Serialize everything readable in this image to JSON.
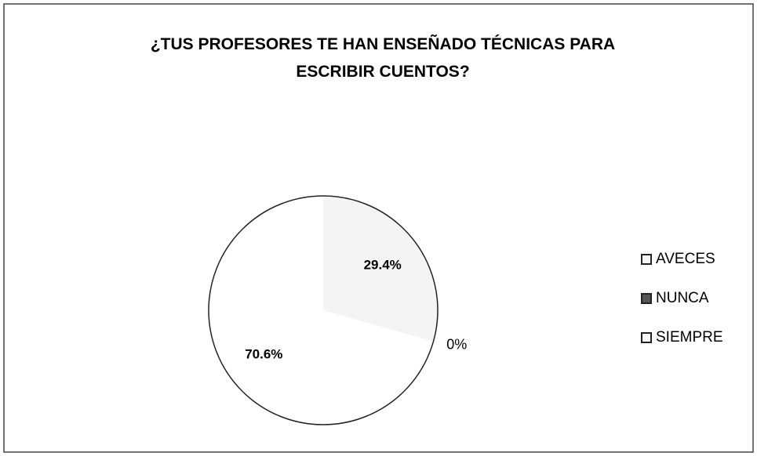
{
  "chart_data": {
    "type": "pie",
    "title": "¿TUS PROFESORES TE HAN ENSEÑADO TÉCNICAS PARA ESCRIBIR CUENTOS?",
    "categories": [
      "AVECES",
      "NUNCA",
      "SIEMPRE"
    ],
    "values": [
      29.4,
      0,
      70.6
    ],
    "value_labels": [
      "29.4%",
      "0%",
      "70.6%"
    ],
    "colors": [
      "#f4f4f4",
      "#555555",
      "#ffffff"
    ],
    "legend": "right"
  }
}
